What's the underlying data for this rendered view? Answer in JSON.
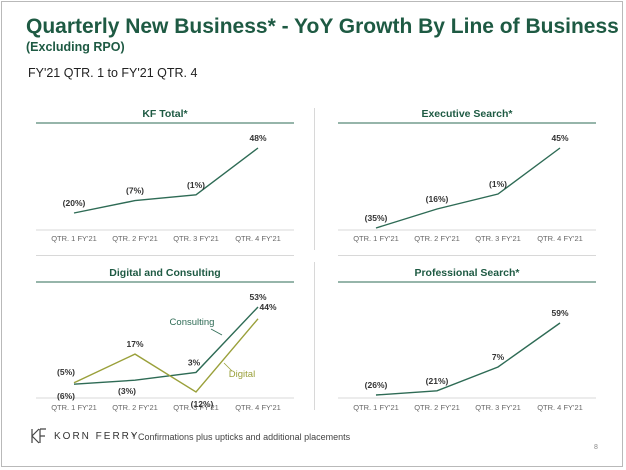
{
  "header": {
    "title": "Quarterly New Business* - YoY Growth By Line of Business",
    "subtitle": "(Excluding RPO)",
    "period": "FY'21 QTR. 1 to FY'21 QTR. 4"
  },
  "colors": {
    "brand": "#1e5a43",
    "primary_line": "#2e6b55",
    "consulting_line": "#2e6b55",
    "digital_line": "#9aa03a",
    "divider": "#2e6b55"
  },
  "chart_data": [
    {
      "type": "line",
      "title": "KF Total*",
      "categories": [
        "QTR. 1 FY'21",
        "QTR. 2 FY'21",
        "QTR. 3 FY'21",
        "QTR. 4 FY'21"
      ],
      "series": [
        {
          "values": [
            -20,
            -7,
            -1,
            48
          ],
          "labels": [
            "(20%)",
            "(7%)",
            "(1%)",
            "48%"
          ]
        }
      ]
    },
    {
      "type": "line",
      "title": "Executive Search*",
      "categories": [
        "QTR. 1 FY'21",
        "QTR. 2 FY'21",
        "QTR. 3 FY'21",
        "QTR. 4 FY'21"
      ],
      "series": [
        {
          "values": [
            -35,
            -16,
            -1,
            45
          ],
          "labels": [
            "(35%)",
            "(16%)",
            "(1%)",
            "45%"
          ]
        }
      ]
    },
    {
      "type": "line",
      "title": "Digital and Consulting",
      "categories": [
        "QTR. 1 FY'21",
        "QTR. 2 FY'21",
        "QTR. 3 FY'21",
        "QTR. 4 FY'21"
      ],
      "series": [
        {
          "name": "Consulting",
          "values": [
            -6,
            -3,
            3,
            53
          ],
          "labels": [
            "(6%)",
            "(3%)",
            "3%",
            "53%"
          ]
        },
        {
          "name": "Digital",
          "values": [
            -5,
            17,
            -12,
            44
          ],
          "labels": [
            "(5%)",
            "17%",
            "(12%)",
            "44%"
          ]
        }
      ]
    },
    {
      "type": "line",
      "title": "Professional Search*",
      "categories": [
        "QTR. 1 FY'21",
        "QTR. 2 FY'21",
        "QTR. 3 FY'21",
        "QTR. 4 FY'21"
      ],
      "series": [
        {
          "values": [
            -26,
            -21,
            7,
            59
          ],
          "labels": [
            "(26%)",
            "(21%)",
            "7%",
            "59%"
          ]
        }
      ]
    }
  ],
  "footer": {
    "brand_name": "KORN FERRY",
    "footnote": "* Confirmations plus upticks and additional placements",
    "page_number": "8"
  }
}
